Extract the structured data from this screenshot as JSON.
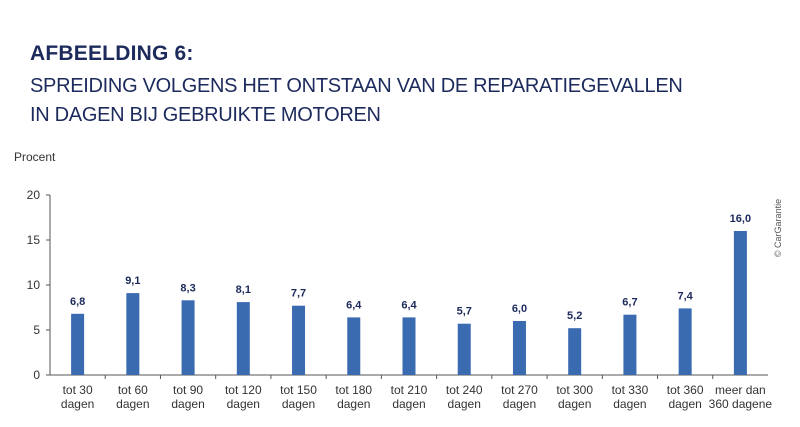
{
  "header": {
    "title_bold": "AFBEELDING 6:",
    "title_line1": "SPREIDING VOLGENS HET ONTSTAAN VAN DE REPARATIEGEVALLEN",
    "title_line2": "IN DAGEN BIJ GEBRUIKTE MOTOREN"
  },
  "credit": "© CarGarantie",
  "colors": {
    "bar": "#3a6bb0",
    "title": "#1c2a5c",
    "axis": "#555555"
  },
  "chart_data": {
    "type": "bar",
    "title": "SPREIDING VOLGENS HET ONTSTAAN VAN DE REPARATIEGEVALLEN IN DAGEN BIJ GEBRUIKTE MOTOREN",
    "ylabel": "Procent",
    "xlabel": "",
    "ylim": [
      0,
      20
    ],
    "yticks": [
      "0",
      "5",
      "10",
      "15",
      "20"
    ],
    "grid": false,
    "categories": [
      [
        "tot 30",
        "dagen"
      ],
      [
        "tot 60",
        "dagen"
      ],
      [
        "tot 90",
        "dagen"
      ],
      [
        "tot 120",
        "dagen"
      ],
      [
        "tot 150",
        "dagen"
      ],
      [
        "tot 180",
        "dagen"
      ],
      [
        "tot 210",
        "dagen"
      ],
      [
        "tot 240",
        "dagen"
      ],
      [
        "tot 270",
        "dagen"
      ],
      [
        "tot 300",
        "dagen"
      ],
      [
        "tot 330",
        "dagen"
      ],
      [
        "tot 360",
        "dagen"
      ],
      [
        "meer dan",
        "360 dagene"
      ]
    ],
    "values": [
      6.8,
      9.1,
      8.3,
      8.1,
      7.7,
      6.4,
      6.4,
      5.7,
      6.0,
      5.2,
      6.7,
      7.4,
      16.0
    ],
    "value_labels": [
      "6,8",
      "9,1",
      "8,3",
      "8,1",
      "7,7",
      "6,4",
      "6,4",
      "5,7",
      "6,0",
      "5,2",
      "6,7",
      "7,4",
      "16,0"
    ]
  }
}
